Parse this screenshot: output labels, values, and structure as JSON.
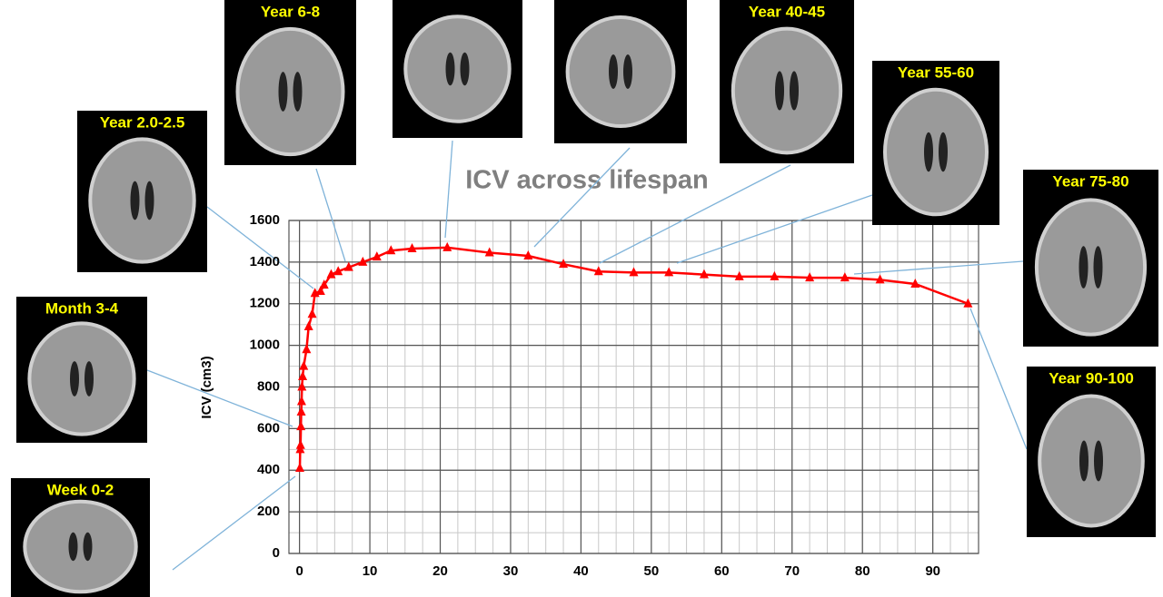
{
  "chart_data": {
    "type": "line",
    "title": "ICV across lifespan",
    "ylabel": "ICV (cm3)",
    "x": [
      0.05,
      0.1,
      0.15,
      0.2,
      0.25,
      0.3,
      0.35,
      0.45,
      0.6,
      1,
      1.3,
      1.8,
      2.2,
      3,
      3.5,
      4.5,
      5.5,
      7,
      9,
      11,
      13,
      16,
      21,
      27,
      32.5,
      37.5,
      42.5,
      47.5,
      52.5,
      57.5,
      62.5,
      67.5,
      72.5,
      77.5,
      82.5,
      87.5,
      95
    ],
    "values": [
      410,
      500,
      520,
      610,
      680,
      730,
      800,
      850,
      900,
      980,
      1090,
      1150,
      1250,
      1260,
      1290,
      1340,
      1355,
      1375,
      1400,
      1425,
      1455,
      1465,
      1470,
      1445,
      1430,
      1390,
      1355,
      1350,
      1350,
      1340,
      1330,
      1330,
      1325,
      1325,
      1315,
      1295,
      1200
    ],
    "color": "#ff0000",
    "xlim": [
      -1.5,
      96.5
    ],
    "ylim": [
      0,
      1600
    ],
    "xticks": [
      0,
      10,
      20,
      30,
      40,
      50,
      60,
      70,
      80,
      90
    ],
    "yticks": [
      0,
      200,
      400,
      600,
      800,
      1000,
      1200,
      1400,
      1600
    ],
    "grid": true,
    "annotations": [
      "Week 0-2",
      "Month 3-4",
      "Year 2.0-2.5",
      "Year 6-8",
      "Year 40-45",
      "Year 55-60",
      "Year 75-80",
      "Year 90-100"
    ]
  }
}
